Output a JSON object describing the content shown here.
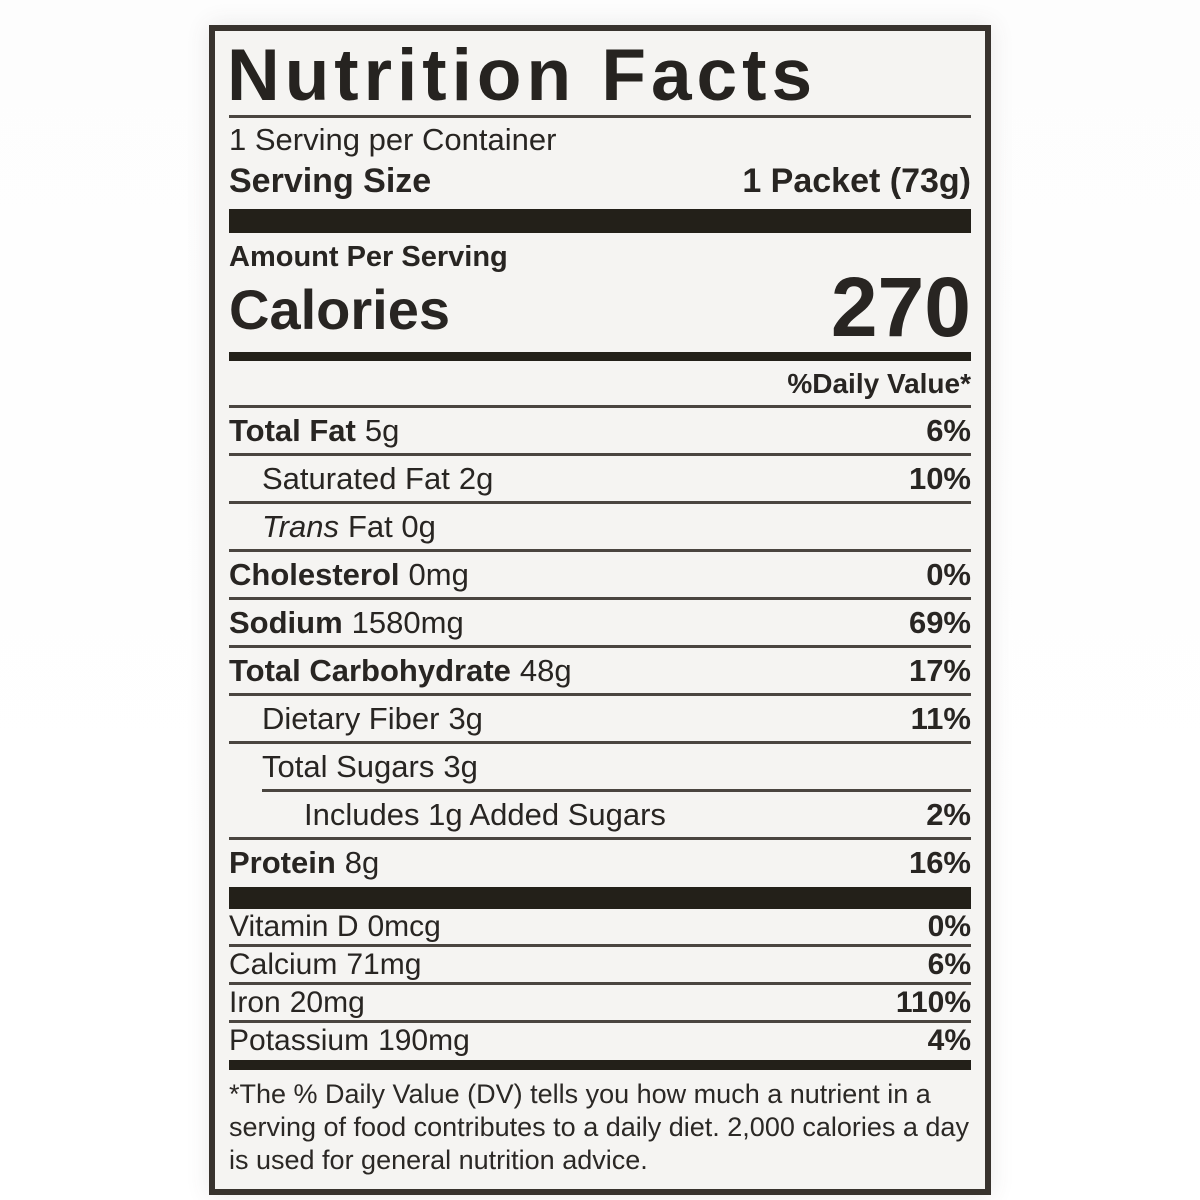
{
  "label": {
    "title": "Nutrition Facts",
    "servings_per_container": "1 Serving per Container",
    "serving_size_label": "Serving Size",
    "serving_size_value": "1 Packet (73g)",
    "amount_per_serving": "Amount Per Serving",
    "calories_label": "Calories",
    "calories_value": "270",
    "daily_value_header": "%Daily Value*",
    "rows": [
      {
        "name": "Total Fat",
        "amount": "5g",
        "percent": "6%"
      },
      {
        "name": "Saturated Fat",
        "amount": "2g",
        "percent": "10%"
      },
      {
        "name": "Trans",
        "amount": "Fat 0g",
        "percent": ""
      },
      {
        "name": "Cholesterol",
        "amount": "0mg",
        "percent": "0%"
      },
      {
        "name": "Sodium",
        "amount": "1580mg",
        "percent": "69%"
      },
      {
        "name": "Total Carbohydrate",
        "amount": "48g",
        "percent": "17%"
      },
      {
        "name": "Dietary Fiber",
        "amount": "3g",
        "percent": "11%"
      },
      {
        "name": "Total Sugars",
        "amount": "3g",
        "percent": ""
      },
      {
        "name": "Includes 1g Added Sugars",
        "amount": "",
        "percent": "2%"
      },
      {
        "name": "Protein",
        "amount": "8g",
        "percent": "16%"
      }
    ],
    "vitamins": [
      {
        "name": "Vitamin D",
        "amount": "0mcg",
        "percent": "0%"
      },
      {
        "name": "Calcium",
        "amount": "71mg",
        "percent": "6%"
      },
      {
        "name": "Iron",
        "amount": "20mg",
        "percent": "110%"
      },
      {
        "name": "Potassium",
        "amount": "190mg",
        "percent": "4%"
      }
    ],
    "footnote": "*The % Daily Value (DV) tells you how much a nutrient in a serving of food contributes to a daily diet. 2,000 calories a day is used for general nutrition advice."
  },
  "colors": {
    "ink": "#282522",
    "separator_bar": "#232019",
    "label_background": "#f5f4f2",
    "page_background": "#ffffff"
  }
}
